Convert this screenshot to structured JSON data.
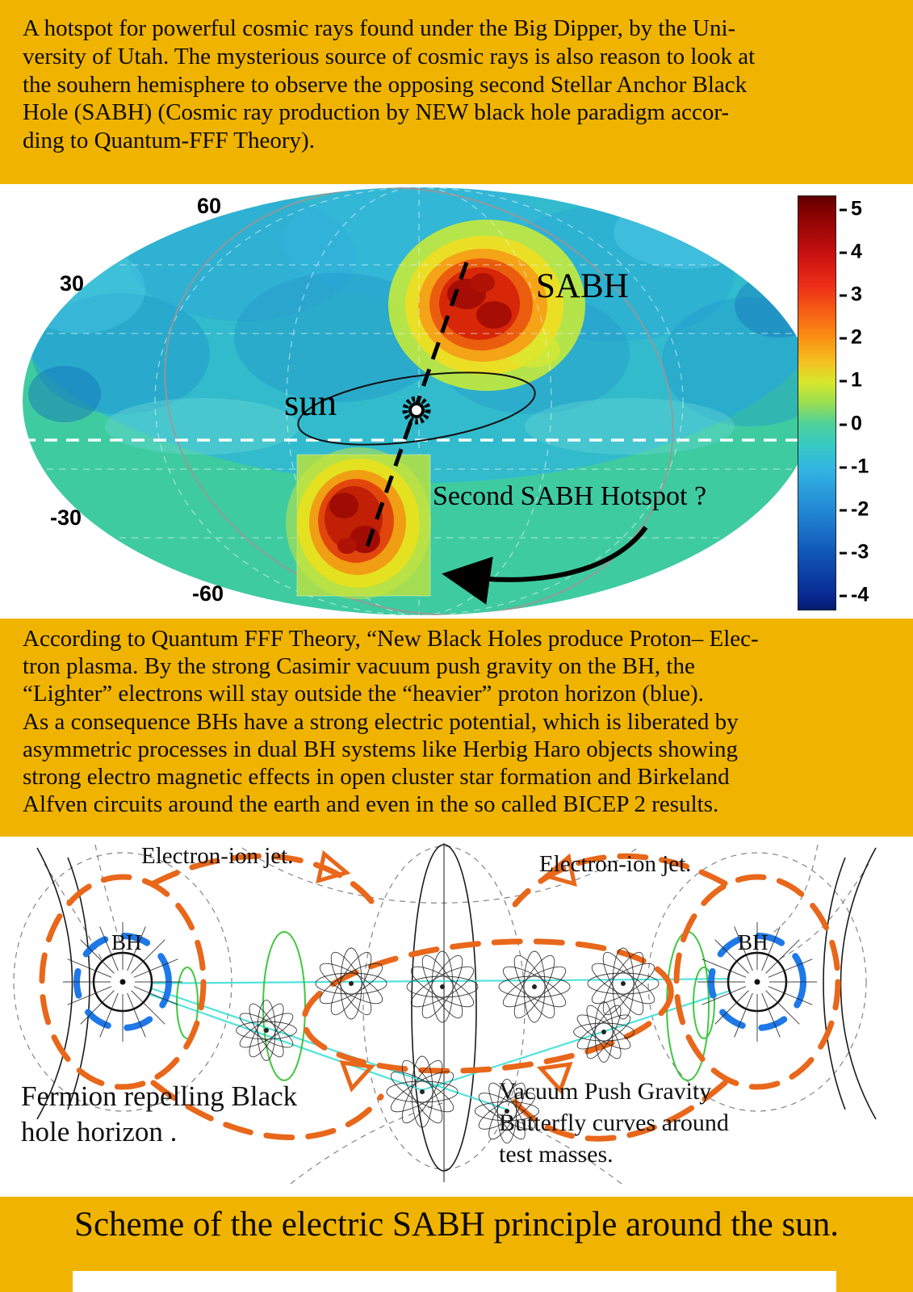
{
  "colors": {
    "gold": "#F0B400",
    "map_green": "#3FCBA0",
    "orange_curve": "#E8671A",
    "blue_arc": "#1E78E8"
  },
  "header": {
    "text": "A hotspot for powerful cosmic rays found under the Big Dipper, by the Uni-\nversity of Utah. The mysterious source of cosmic rays is also reason to look at\nthe souhern hemisphere to observe the opposing second Stellar Anchor Black\nHole (SABH) (Cosmic ray production by NEW black hole paradigm accor-\nding to Quantum-FFF Theory)."
  },
  "skymap": {
    "lat_labels": [
      "60",
      "30",
      "-30",
      "-60"
    ],
    "sabh_label": "SABH",
    "sun_label": "sun",
    "second_hotspot_label": "Second SABH Hotspot ?",
    "colorbar_ticks": [
      "5",
      "4",
      "3",
      "2",
      "1",
      "0",
      "-1",
      "-2",
      "-3",
      "-4"
    ]
  },
  "middle_text": {
    "text": "According to  Quantum FFF Theory, “New Black Holes produce Proton– Elec-\ntron plasma. By the strong Casimir vacuum push gravity on the BH, the\n“Lighter” electrons will stay outside the “heavier” proton horizon (blue).\nAs a consequence BHs have a strong electric potential, which is liberated by\nasymmetric processes in dual BH systems like Herbig Haro objects showing\nstrong electro magnetic effects in open cluster star formation and Birkeland\nAlfven circuits around the earth and even in the so called BICEP 2  results."
  },
  "diagram": {
    "jet_label_left": "Electron-ion jet.",
    "jet_label_right": "Electron-ion jet.",
    "bh_label_left": "BH",
    "bh_label_right": "BH",
    "fermion_label": "Fermion repelling Black\nhole horizon .",
    "vacuum_label": "Vacuum Push Gravity\nButterfly curves around\ntest masses."
  },
  "footer": {
    "caption": "Scheme of the electric SABH principle around the sun."
  }
}
